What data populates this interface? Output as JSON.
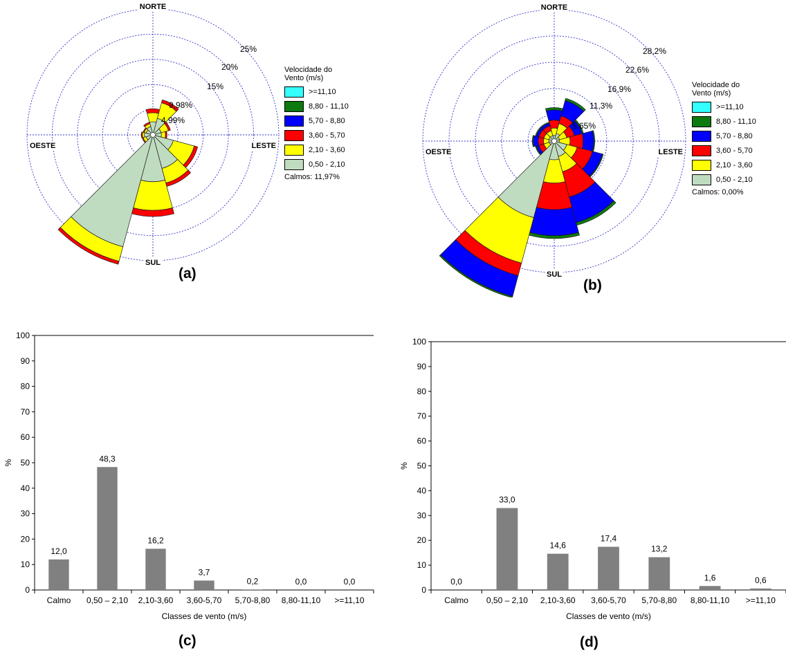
{
  "panels": [
    {
      "id": "a",
      "label": "(a)"
    },
    {
      "id": "b",
      "label": "(b)"
    },
    {
      "id": "c",
      "label": "(c)"
    },
    {
      "id": "d",
      "label": "(d)"
    }
  ],
  "legend_title": "Velocidade do Vento (m/s)",
  "legend_title_lines": [
    "Velocidade do",
    "Vento (m/s)"
  ],
  "speed_classes": [
    {
      "label": ">=11,10",
      "color": "#33ffff"
    },
    {
      "label": "8,80 - 11,10",
      "color": "#0d7a0d"
    },
    {
      "label": "5,70 - 8,80",
      "color": "#0000ff"
    },
    {
      "label": "3,60 - 5,70",
      "color": "#ff0000"
    },
    {
      "label": "2,10 - 3,60",
      "color": "#ffff00"
    },
    {
      "label": "0,50 - 2,10",
      "color": "#c0dcc0"
    }
  ],
  "chart_data": [
    {
      "panel": "(a)",
      "type": "wind-rose",
      "directions": [
        "NORTE",
        "LESTE",
        "SUL",
        "OESTE"
      ],
      "ring_labels": [
        "4,99%",
        "9,98%",
        "15%",
        "20%",
        "25%"
      ],
      "rmax_percent": 25,
      "calm_text": "Calmos: 11,97%",
      "sectors": [
        {
          "center_deg": 0,
          "cum": [
            2.6,
            4.4,
            5.2
          ]
        },
        {
          "center_deg": 30,
          "cum": [
            3.4,
            6.6,
            7.2
          ]
        },
        {
          "center_deg": 60,
          "cum": [
            1.7,
            3.2,
            3.6
          ]
        },
        {
          "center_deg": 90,
          "cum": [
            1.7,
            2.5,
            2.8
          ]
        },
        {
          "center_deg": 120,
          "cum": [
            4.2,
            8.5,
            9.2
          ]
        },
        {
          "center_deg": 150,
          "cum": [
            6.9,
            9.9,
            10.6
          ]
        },
        {
          "center_deg": 180,
          "cum": [
            9.3,
            15.0,
            16.2
          ]
        },
        {
          "center_deg": 210,
          "cum": [
            23.0,
            26.0,
            26.6
          ]
        },
        {
          "center_deg": 240,
          "cum": [
            1.4,
            2.0,
            2.2
          ]
        },
        {
          "center_deg": 270,
          "cum": [
            1.7,
            2.1,
            2.3
          ]
        },
        {
          "center_deg": 300,
          "cum": [
            1.4,
            1.8,
            2.0
          ]
        },
        {
          "center_deg": 330,
          "cum": [
            1.7,
            2.3,
            2.6
          ]
        }
      ]
    },
    {
      "panel": "(b)",
      "type": "wind-rose",
      "directions": [
        "NORTE",
        "LESTE",
        "SUL",
        "OESTE"
      ],
      "ring_labels": [
        "5,65%",
        "11,3%",
        "16,9%",
        "22,6%",
        "28,2%"
      ],
      "rmax_percent": 28.2,
      "calm_text": "Calmos: 0,00%",
      "sectors": [
        {
          "center_deg": 0,
          "cum": [
            1.2,
            2.8,
            4.5,
            6.7,
            7.2
          ]
        },
        {
          "center_deg": 30,
          "cum": [
            1.7,
            3.9,
            5.6,
            9.0,
            9.5
          ]
        },
        {
          "center_deg": 60,
          "cum": [
            1.2,
            2.8,
            4.5,
            6.2,
            6.5
          ]
        },
        {
          "center_deg": 90,
          "cum": [
            1.1,
            3.4,
            6.2,
            8.5,
            8.7
          ]
        },
        {
          "center_deg": 120,
          "cum": [
            2.8,
            5.1,
            8.5,
            10.7,
            10.9
          ]
        },
        {
          "center_deg": 150,
          "cum": [
            3.4,
            6.8,
            12.4,
            18.1,
            18.7
          ]
        },
        {
          "center_deg": 180,
          "cum": [
            4.0,
            9.0,
            14.7,
            20.3,
            20.9
          ]
        },
        {
          "center_deg": 210,
          "cum": [
            17.0,
            27.1,
            29.9,
            34.5,
            34.8
          ]
        },
        {
          "center_deg": 240,
          "cum": [
            1.1,
            2.3,
            3.4,
            4.0,
            4.2
          ]
        },
        {
          "center_deg": 270,
          "cum": [
            1.2,
            2.3,
            3.4,
            4.5,
            4.7
          ]
        },
        {
          "center_deg": 300,
          "cum": [
            1.2,
            2.3,
            3.4,
            4.0,
            4.2
          ]
        },
        {
          "center_deg": 330,
          "cum": [
            1.2,
            2.3,
            3.4,
            4.0,
            4.2
          ]
        }
      ]
    },
    {
      "panel": "(c)",
      "type": "bar",
      "categories": [
        "Calmo",
        "0,50 – 2,10",
        "2,10-3,60",
        "3,60-5,70",
        "5,70-8,80",
        "8,80-11,10",
        ">=11,10"
      ],
      "values": [
        12.0,
        48.3,
        16.2,
        3.7,
        0.2,
        0.0,
        0.0
      ],
      "value_labels": [
        "12,0",
        "48,3",
        "16,2",
        "3,7",
        "0,2",
        "0,0",
        "0,0"
      ],
      "ylim": [
        0,
        100
      ],
      "yticks": [
        0,
        10,
        20,
        30,
        40,
        50,
        60,
        70,
        80,
        90,
        100
      ],
      "ylabel": "%",
      "xlabel": "Classes de vento (m/s)",
      "bar_color": "#808080"
    },
    {
      "panel": "(d)",
      "type": "bar",
      "categories": [
        "Calmo",
        "0,50 – 2,10",
        "2,10-3,60",
        "3,60-5,70",
        "5,70-8,80",
        "8,80-11,10",
        ">=11,10"
      ],
      "values": [
        0.0,
        33.0,
        14.6,
        17.4,
        13.2,
        1.6,
        0.6
      ],
      "value_labels": [
        "0,0",
        "33,0",
        "14,6",
        "17,4",
        "13,2",
        "1,6",
        "0,6"
      ],
      "ylim": [
        0,
        100
      ],
      "yticks": [
        0,
        10,
        20,
        30,
        40,
        50,
        60,
        70,
        80,
        90,
        100
      ],
      "ylabel": "%",
      "xlabel": "Classes de vento (m/s)",
      "bar_color": "#808080"
    }
  ]
}
